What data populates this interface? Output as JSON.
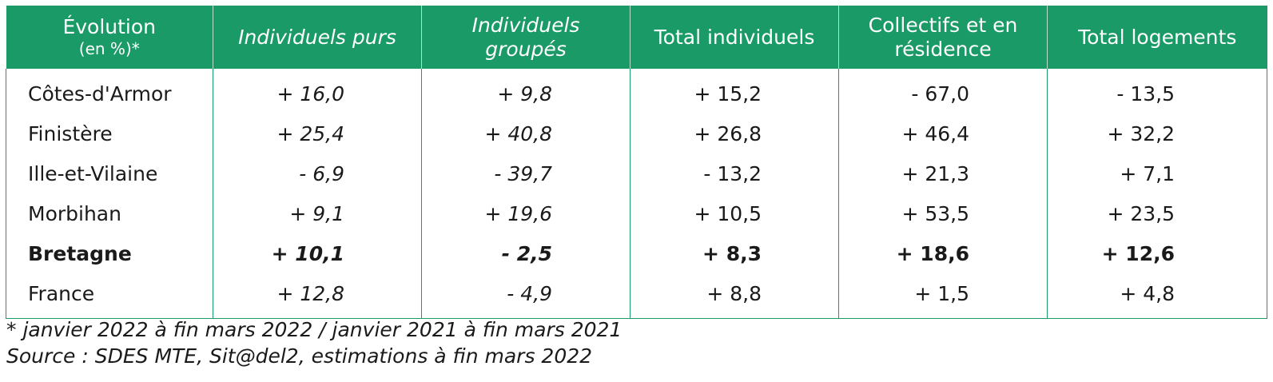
{
  "colors": {
    "header_bg": "#1a9a66",
    "header_text": "#ffffff",
    "border": "#1a9a66"
  },
  "header": {
    "col0_line1": "Évolution",
    "col0_line2": "(en %)*",
    "col1": "Individuels purs",
    "col2_line1": "Individuels",
    "col2_line2": "groupés",
    "col3": "Total individuels",
    "col4_line1": "Collectifs et en",
    "col4_line2": "résidence",
    "col5": "Total logements"
  },
  "rows": [
    {
      "name": "Côtes-d'Armor",
      "values": [
        "+ 16,0",
        "+ 9,8",
        "+ 15,2",
        "- 67,0",
        "- 13,5"
      ]
    },
    {
      "name": "Finistère",
      "values": [
        "+ 25,4",
        "+ 40,8",
        "+ 26,8",
        "+ 46,4",
        "+ 32,2"
      ]
    },
    {
      "name": "Ille-et-Vilaine",
      "values": [
        "- 6,9",
        "- 39,7",
        "- 13,2",
        "+ 21,3",
        "+ 7,1"
      ]
    },
    {
      "name": "Morbihan",
      "values": [
        "+ 9,1",
        "+ 19,6",
        "+ 10,5",
        "+ 53,5",
        "+ 23,5"
      ]
    },
    {
      "name": "Bretagne",
      "values": [
        "+ 10,1",
        "- 2,5",
        "+ 8,3",
        "+ 18,6",
        "+ 12,6"
      ]
    },
    {
      "name": "France",
      "values": [
        "+ 12,8",
        "- 4,9",
        "+ 8,8",
        "+ 1,5",
        "+ 4,8"
      ]
    }
  ],
  "notes": {
    "period": "* janvier 2022 à fin mars 2022 / janvier 2021 à fin mars 2021",
    "source": "Source : SDES MTE, Sit@del2, estimations à fin mars 2022"
  }
}
